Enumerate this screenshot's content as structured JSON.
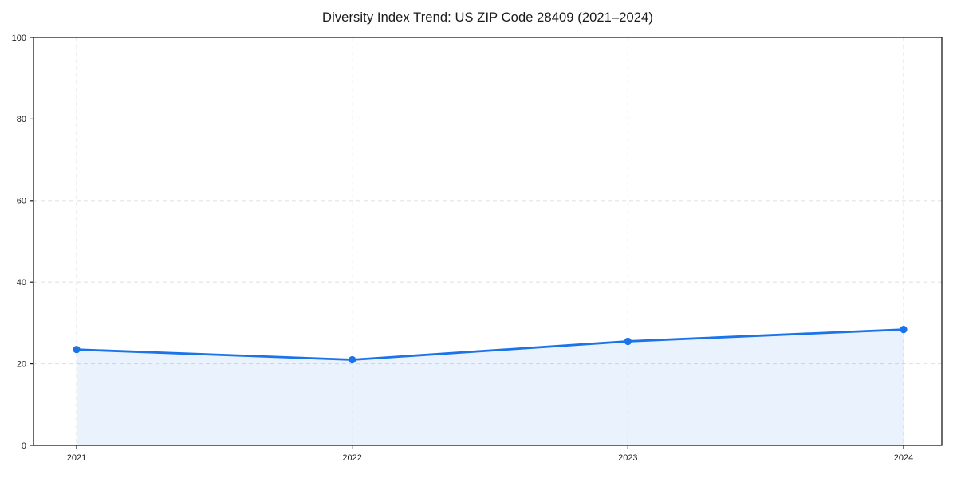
{
  "page": {
    "background": "#ffffff"
  },
  "chart_data": {
    "type": "area",
    "title": "Diversity Index Trend: US ZIP Code 28409 (2021–2024)",
    "categories": [
      "2021",
      "2022",
      "2023",
      "2024"
    ],
    "x": [
      2021,
      2022,
      2023,
      2024
    ],
    "series": [
      {
        "name": "Diversity Index",
        "values": [
          23.5,
          21.0,
          25.5,
          28.4
        ]
      }
    ],
    "xlabel": "",
    "ylabel": "",
    "ylim": [
      0,
      100
    ],
    "yticks": [
      0,
      20,
      40,
      60,
      80,
      100
    ],
    "grid": true,
    "grid_style": "dashed",
    "legend": "none",
    "colors": {
      "line": "#1a73e8",
      "marker": "#1a73e8",
      "fill": "#1a73e8",
      "fill_opacity": 0.09,
      "grid": "#e2e2e2",
      "spine": "#1a1a1a",
      "tick_text": "#1a1a1a"
    }
  }
}
